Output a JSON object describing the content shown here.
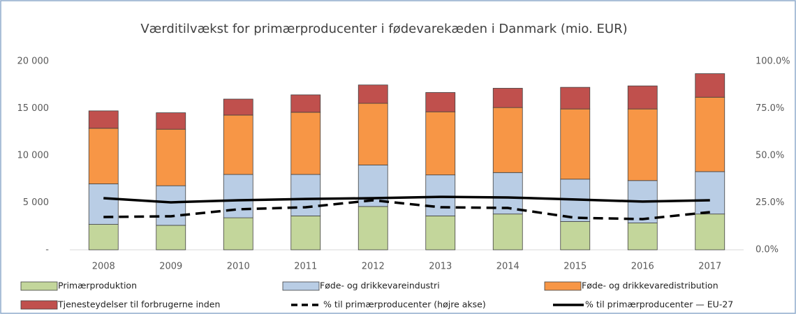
{
  "chart_data": {
    "type": "bar",
    "stacked": true,
    "title": "Værditilvækst for primærproducenter i fødevarekæden i Danmark (mio. EUR)",
    "categories": [
      "2008",
      "2009",
      "2010",
      "2011",
      "2012",
      "2013",
      "2014",
      "2015",
      "2016",
      "2017"
    ],
    "series": [
      {
        "name": "Primærproduktion",
        "color": "#c3d69b",
        "values": [
          2700,
          2600,
          3400,
          3600,
          4600,
          3600,
          3800,
          3000,
          2850,
          3800
        ]
      },
      {
        "name": "Føde- og drikkevareindustri",
        "color": "#b9cde5",
        "values": [
          4300,
          4200,
          4600,
          4400,
          4400,
          4350,
          4400,
          4500,
          4500,
          4500
        ]
      },
      {
        "name": "Føde- og drikkevaredistribution",
        "color": "#f79646",
        "values": [
          5900,
          6000,
          6300,
          6600,
          6550,
          6700,
          6900,
          7450,
          7600,
          7900
        ]
      },
      {
        "name": "Tjenesteydelser til forbrugerne inden",
        "color": "#c0504d",
        "values": [
          1850,
          1750,
          1700,
          1850,
          1950,
          2050,
          2050,
          2300,
          2450,
          2500
        ]
      },
      {
        "name": "% til primærproducenter (højre akse)",
        "type": "line",
        "axis": "y2",
        "dashed": true,
        "color": "#000000",
        "values": [
          17.4,
          17.8,
          21.5,
          22.6,
          26.3,
          22.6,
          22.2,
          17,
          16.3,
          20
        ]
      },
      {
        "name": "% til primærproducenter — EU-27",
        "type": "line",
        "axis": "y2",
        "dashed": false,
        "color": "#000000",
        "values": [
          27.4,
          25.2,
          26.3,
          27,
          27.4,
          28.1,
          27.8,
          26.7,
          25.6,
          26.3
        ]
      }
    ],
    "ylim": [
      0,
      20000
    ],
    "yticks": [
      {
        "value": 0,
        "label": "-"
      },
      {
        "value": 5000,
        "label": "5 000"
      },
      {
        "value": 10000,
        "label": "10 000"
      },
      {
        "value": 15000,
        "label": "15 000"
      },
      {
        "value": 20000,
        "label": "20 000"
      }
    ],
    "y2lim": [
      0,
      100
    ],
    "y2ticks": [
      {
        "value": 0,
        "label": "0.0%"
      },
      {
        "value": 25,
        "label": "25.0%"
      },
      {
        "value": 50,
        "label": "50.0%"
      },
      {
        "value": 75,
        "label": "75.0%"
      },
      {
        "value": 100,
        "label": "100.0%"
      }
    ],
    "legend": "bottom"
  }
}
